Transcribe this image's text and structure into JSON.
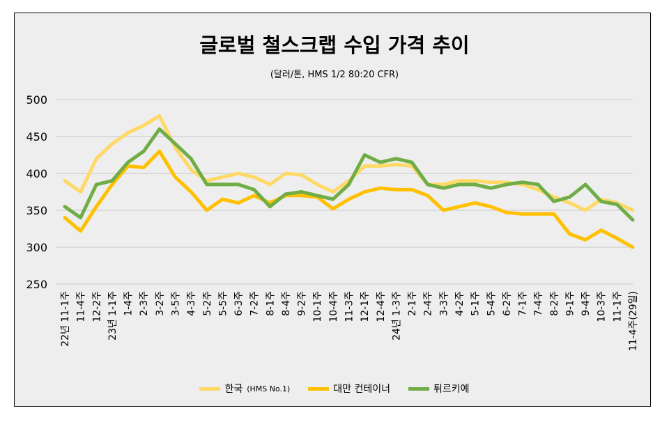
{
  "title": "글로벌 철스크랩 수입 가격 추이",
  "subtitle": "(달러/톤, HMS 1/2 80:20 CFR)",
  "chart_data": {
    "type": "line",
    "title": "글로벌 철스크랩 수입 가격 추이",
    "ylabel": "달러/톤",
    "ylim": [
      250,
      500
    ],
    "yticks": [
      250,
      300,
      350,
      400,
      450,
      500
    ],
    "grid": true,
    "legend": "bottom",
    "categories": [
      "22년 11-1주",
      "11-4주",
      "12-2주",
      "23년 1-1주",
      "1-4주",
      "2-3주",
      "3-2주",
      "3-5주",
      "4-3주",
      "5-2주",
      "5-5주",
      "6-3주",
      "7-2주",
      "8-1주",
      "8-4주",
      "9-2주",
      "10-1주",
      "10-4주",
      "11-3주",
      "12-1주",
      "12-4주",
      "24년 1-3주",
      "2-1주",
      "2-4주",
      "3-3주",
      "4-2주",
      "5-1주",
      "5-4주",
      "6-2주",
      "7-1주",
      "7-4주",
      "8-2주",
      "9-1주",
      "9-4주",
      "10-3주",
      "11-1주",
      "11-4주(29일)"
    ],
    "series": [
      {
        "name": "한국",
        "name_suffix": "(HMS No.1)",
        "color": "#FFD966",
        "values": [
          390,
          375,
          420,
          440,
          455,
          465,
          478,
          435,
          405,
          390,
          395,
          400,
          395,
          385,
          400,
          398,
          385,
          375,
          390,
          410,
          410,
          412,
          410,
          385,
          385,
          390,
          390,
          388,
          388,
          385,
          378,
          368,
          360,
          350,
          365,
          360,
          350
        ]
      },
      {
        "name": "대만 컨테이너",
        "name_suffix": "",
        "color": "#FFC000",
        "values": [
          340,
          322,
          355,
          385,
          410,
          408,
          430,
          395,
          375,
          350,
          365,
          360,
          370,
          360,
          370,
          370,
          368,
          352,
          365,
          375,
          380,
          378,
          378,
          370,
          350,
          355,
          360,
          355,
          347,
          345,
          345,
          345,
          318,
          310,
          323,
          312,
          300
        ]
      },
      {
        "name": "튀르키예",
        "name_suffix": "",
        "color": "#70AD47",
        "values": [
          355,
          340,
          385,
          390,
          415,
          430,
          460,
          440,
          420,
          385,
          385,
          385,
          378,
          355,
          372,
          375,
          370,
          365,
          385,
          425,
          415,
          420,
          415,
          385,
          380,
          385,
          385,
          380,
          385,
          388,
          385,
          362,
          368,
          385,
          362,
          358,
          337
        ]
      }
    ]
  }
}
